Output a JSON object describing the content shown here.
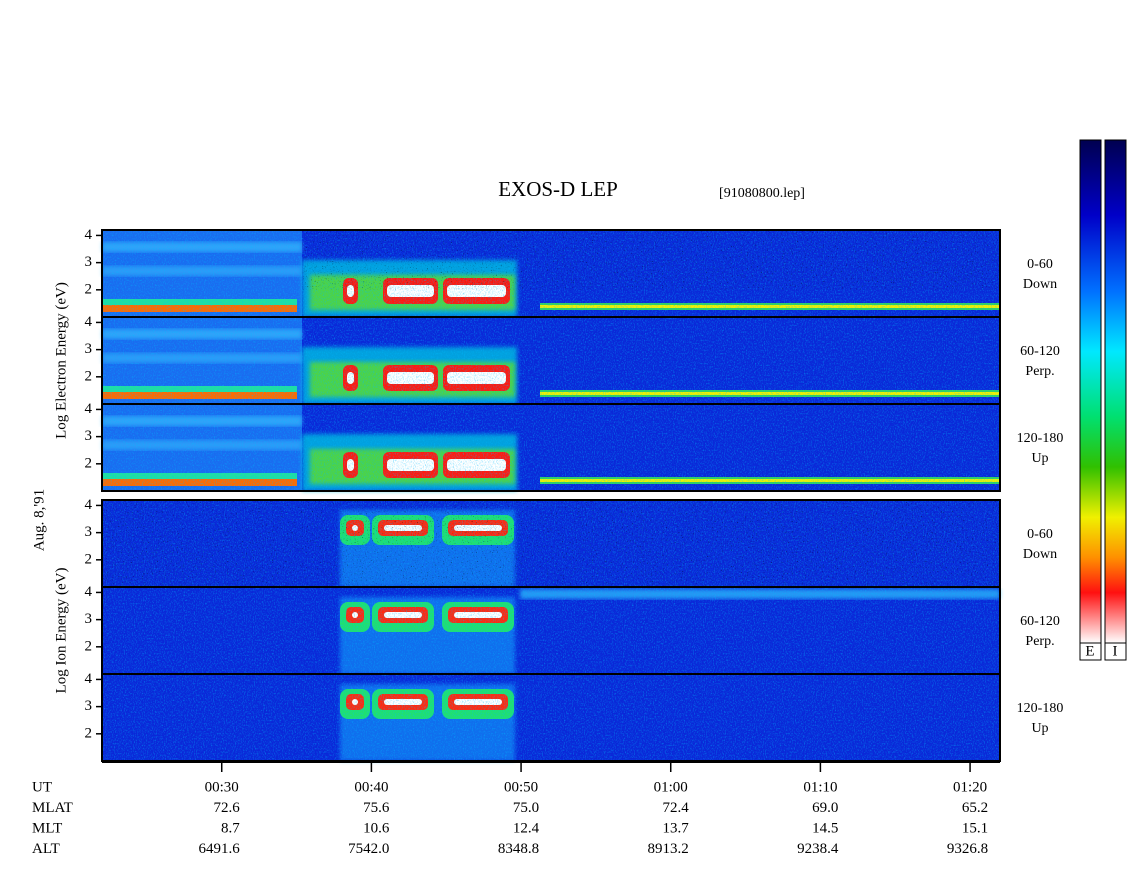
{
  "title": "EXOS-D LEP",
  "file": "[91080800.lep]",
  "date": "Aug. 8,'91",
  "groups": [
    {
      "label": "Log Electron Energy (eV)",
      "panels": [
        {
          "pitch": "0-60",
          "direction": "Down"
        },
        {
          "pitch": "60-120",
          "direction": "Perp."
        },
        {
          "pitch": "120-180",
          "direction": "Up"
        }
      ]
    },
    {
      "label": "Log Ion Energy (eV)",
      "panels": [
        {
          "pitch": "0-60",
          "direction": "Down"
        },
        {
          "pitch": "60-120",
          "direction": "Perp."
        },
        {
          "pitch": "120-180",
          "direction": "Up"
        }
      ]
    }
  ],
  "ylim": [
    1,
    4.2
  ],
  "yticks": [
    2,
    3,
    4
  ],
  "xlim": [
    22,
    82
  ],
  "xticks": [
    {
      "value": 30,
      "label": "00:30"
    },
    {
      "value": 40,
      "label": "00:40"
    },
    {
      "value": 50,
      "label": "00:50"
    },
    {
      "value": 60,
      "label": "01:00"
    },
    {
      "value": 70,
      "label": "01:10"
    },
    {
      "value": 80,
      "label": "01:20"
    }
  ],
  "ephemeris": {
    "row_labels": [
      "UT",
      "MLAT",
      "MLT",
      "ALT"
    ],
    "rows": [
      [
        "72.6",
        "75.6",
        "75.0",
        "72.4",
        "69.0",
        "65.2"
      ],
      [
        "8.7",
        "10.6",
        "12.4",
        "13.7",
        "14.5",
        "15.1"
      ],
      [
        "6491.6",
        "7542.0",
        "8348.8",
        "8913.2",
        "9238.4",
        "9326.8"
      ]
    ]
  },
  "colorbars": [
    "E",
    "I"
  ]
}
